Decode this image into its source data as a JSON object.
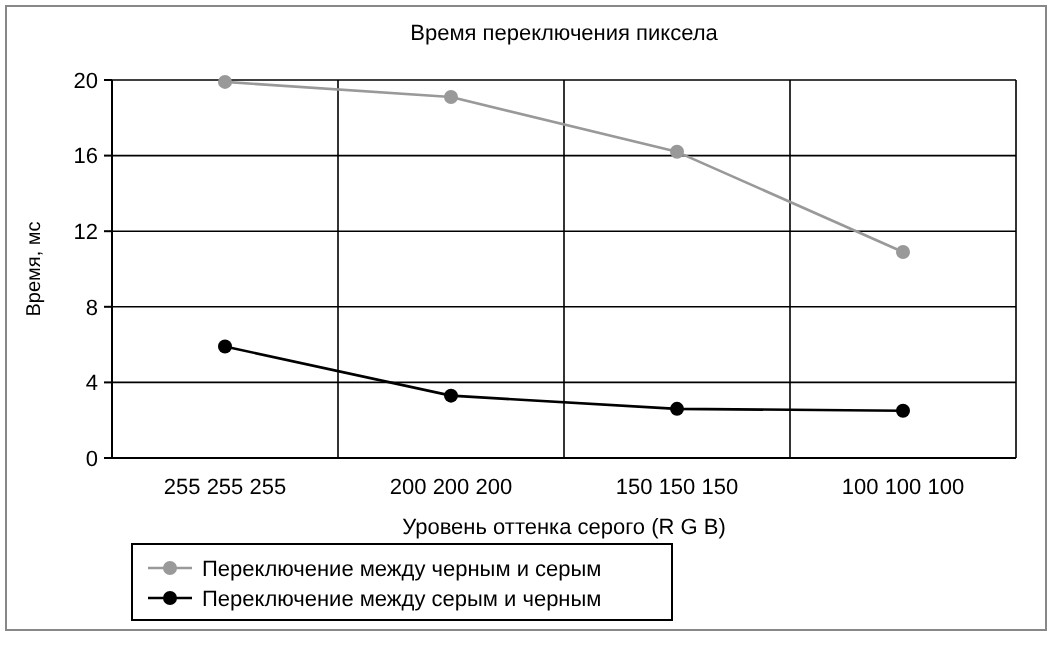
{
  "chart_data": {
    "type": "line",
    "title": "Время переключения пиксела",
    "xlabel": "Уровень оттенка серого (R G B)",
    "ylabel": "Время, мс",
    "categories": [
      "255 255 255",
      "200 200 200",
      "150 150 150",
      "100 100 100"
    ],
    "series": [
      {
        "name": "Переключение между черным и серым",
        "color": "#999999",
        "values": [
          19.9,
          19.1,
          16.2,
          10.9
        ]
      },
      {
        "name": "Переключение между серым и черным",
        "color": "#000000",
        "values": [
          5.9,
          3.3,
          2.6,
          2.5
        ]
      }
    ],
    "ylim": [
      0,
      20
    ],
    "yticks": [
      0,
      4,
      8,
      12,
      16,
      20
    ],
    "grid": true,
    "legend": "bottom left",
    "marker": "circle",
    "line_style": "solid"
  }
}
